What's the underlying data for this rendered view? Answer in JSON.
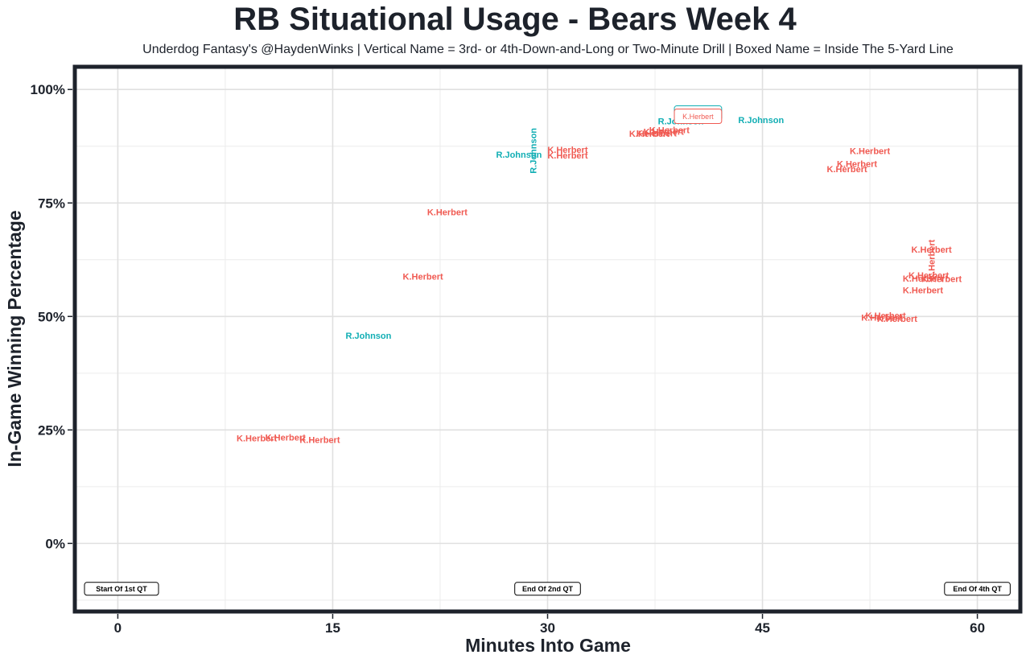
{
  "chart_data": {
    "type": "scatter",
    "title": "RB Situational Usage - Bears Week 4",
    "subtitle": "Underdog Fantasy's @HaydenWinks | Vertical Name = 3rd- or 4th-Down-and-Long or Two-Minute Drill | Boxed Name = Inside The 5-Yard Line",
    "xlabel": "Minutes Into Game",
    "ylabel": "In-Game Winning Percentage",
    "xlim": [
      -3,
      63
    ],
    "ylim": [
      -0.15,
      1.05
    ],
    "x_ticks": [
      0,
      15,
      30,
      45,
      60
    ],
    "y_ticks": [
      0,
      0.25,
      0.5,
      0.75,
      1.0
    ],
    "y_tick_labels": [
      "0%",
      "25%",
      "50%",
      "75%",
      "100%"
    ],
    "grid": true,
    "colors": {
      "R.Johnson": "#11aeb4",
      "K.Herbert": "#f05a52"
    },
    "quarter_labels": [
      {
        "x": 0.2,
        "label": "Start Of 1st QT"
      },
      {
        "x": 30,
        "label": "End Of 2nd QT"
      },
      {
        "x": 60,
        "label": "End Of 4th QT"
      }
    ],
    "points": [
      {
        "x": 9.7,
        "y": 0.232,
        "name": "K.Herbert",
        "style": "normal"
      },
      {
        "x": 11.7,
        "y": 0.234,
        "name": "K.Herbert",
        "style": "normal"
      },
      {
        "x": 14.1,
        "y": 0.228,
        "name": "K.Herbert",
        "style": "normal"
      },
      {
        "x": 17.5,
        "y": 0.458,
        "name": "R.Johnson",
        "style": "normal"
      },
      {
        "x": 21.3,
        "y": 0.588,
        "name": "K.Herbert",
        "style": "normal"
      },
      {
        "x": 23.0,
        "y": 0.73,
        "name": "K.Herbert",
        "style": "normal"
      },
      {
        "x": 28.0,
        "y": 0.857,
        "name": "R.Johnson",
        "style": "normal"
      },
      {
        "x": 29.0,
        "y": 0.865,
        "name": "R.Johnson",
        "style": "vertical"
      },
      {
        "x": 31.4,
        "y": 0.867,
        "name": "K.Herbert",
        "style": "normal"
      },
      {
        "x": 31.4,
        "y": 0.855,
        "name": "K.Herbert",
        "style": "normal"
      },
      {
        "x": 37.1,
        "y": 0.903,
        "name": "K.Herbert",
        "style": "normal"
      },
      {
        "x": 37.6,
        "y": 0.904,
        "name": "K.Herbert",
        "style": "normal"
      },
      {
        "x": 38.1,
        "y": 0.907,
        "name": "K.Herbert",
        "style": "normal"
      },
      {
        "x": 38.5,
        "y": 0.911,
        "name": "K.Herbert",
        "style": "normal"
      },
      {
        "x": 39.3,
        "y": 0.93,
        "name": "R.Johnson",
        "style": "normal"
      },
      {
        "x": 40.5,
        "y": 0.948,
        "name": "R.Johnson",
        "style": "boxed"
      },
      {
        "x": 40.5,
        "y": 0.941,
        "name": "K.Herbert",
        "style": "boxed"
      },
      {
        "x": 44.9,
        "y": 0.933,
        "name": "R.Johnson",
        "style": "normal"
      },
      {
        "x": 50.9,
        "y": 0.825,
        "name": "K.Herbert",
        "style": "normal"
      },
      {
        "x": 51.6,
        "y": 0.836,
        "name": "K.Herbert",
        "style": "normal"
      },
      {
        "x": 52.5,
        "y": 0.865,
        "name": "K.Herbert",
        "style": "normal"
      },
      {
        "x": 53.3,
        "y": 0.498,
        "name": "K.Herbert",
        "style": "normal"
      },
      {
        "x": 53.6,
        "y": 0.502,
        "name": "K.Herbert",
        "style": "normal"
      },
      {
        "x": 54.4,
        "y": 0.495,
        "name": "K.Herbert",
        "style": "normal"
      },
      {
        "x": 56.2,
        "y": 0.558,
        "name": "K.Herbert",
        "style": "normal"
      },
      {
        "x": 56.2,
        "y": 0.584,
        "name": "K.Herbert",
        "style": "normal"
      },
      {
        "x": 56.6,
        "y": 0.591,
        "name": "K.Herbert",
        "style": "normal"
      },
      {
        "x": 56.8,
        "y": 0.648,
        "name": "K.Herbert",
        "style": "normal"
      },
      {
        "x": 57.5,
        "y": 0.583,
        "name": "K.Herbert",
        "style": "normal"
      },
      {
        "x": 56.8,
        "y": 0.625,
        "name": "K.Herbert",
        "style": "vertical"
      }
    ]
  }
}
